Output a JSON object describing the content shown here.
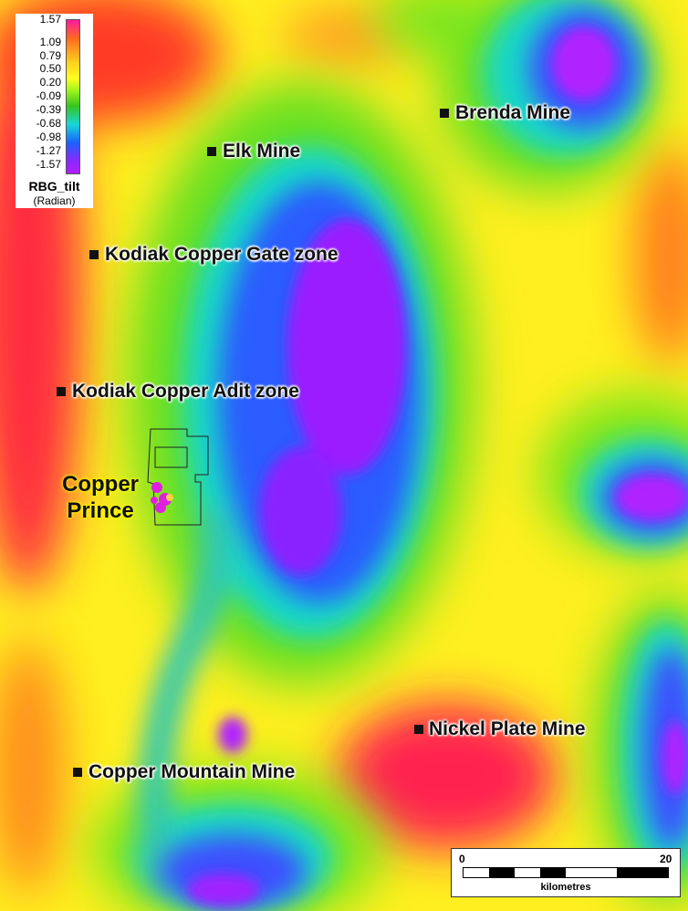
{
  "legend": {
    "ticks": [
      "1.57",
      "1.09",
      "0.79",
      "0.50",
      "0.20",
      "-0.09",
      "-0.39",
      "-0.68",
      "-0.98",
      "-1.27",
      "-1.57"
    ],
    "title": "RBG_tilt",
    "unit": "(Radian)",
    "colors": [
      "#ff19a0",
      "#ff6a1e",
      "#ffd21e",
      "#ffff20",
      "#9ef51a",
      "#36c31c",
      "#18d8d8",
      "#1c60ff",
      "#8c28ff",
      "#b020ff"
    ]
  },
  "mines": {
    "brenda": "Brenda Mine",
    "elk": "Elk Mine",
    "kodiak_gate": "Kodiak Copper Gate zone",
    "kodiak_adit": "Kodiak Copper Adit zone",
    "nickel_plate": "Nickel Plate Mine",
    "copper_mountain": "Copper Mountain Mine"
  },
  "prospect": {
    "line1": "Copper",
    "line2": "Prince"
  },
  "scalebar": {
    "start": "0",
    "end": "20",
    "unit": "kilometres"
  }
}
